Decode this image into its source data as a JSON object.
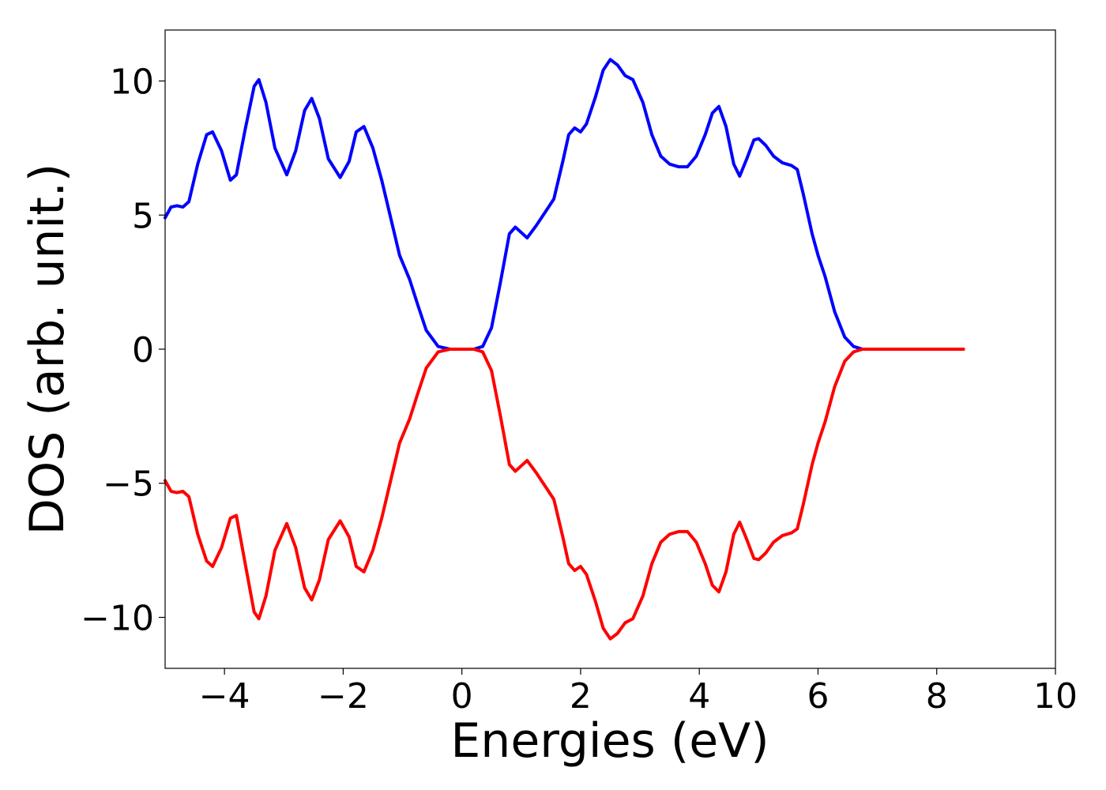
{
  "chart_data": {
    "type": "line",
    "title": "",
    "xlabel": "Energies (eV)",
    "ylabel": "DOS (arb. unit.)",
    "xlim": [
      -5,
      10
    ],
    "ylim": [
      -11.9,
      11.9
    ],
    "xticks": [
      -4,
      -2,
      0,
      2,
      4,
      6,
      8,
      10
    ],
    "xtick_labels": [
      "−4",
      "−2",
      "0",
      "2",
      "4",
      "6",
      "8",
      "10"
    ],
    "yticks": [
      10,
      5,
      0,
      -5,
      -10
    ],
    "ytick_labels": [
      "10",
      "5",
      "0",
      "−5",
      "−10"
    ],
    "grid": false,
    "legend": "none",
    "series": [
      {
        "color": "#0000ff",
        "points": [
          [
            -5.0,
            4.9
          ],
          [
            -4.9,
            5.3
          ],
          [
            -4.8,
            5.35
          ],
          [
            -4.7,
            5.3
          ],
          [
            -4.6,
            5.5
          ],
          [
            -4.45,
            6.9
          ],
          [
            -4.3,
            8.0
          ],
          [
            -4.2,
            8.1
          ],
          [
            -4.05,
            7.4
          ],
          [
            -3.9,
            6.3
          ],
          [
            -3.8,
            6.5
          ],
          [
            -3.65,
            8.2
          ],
          [
            -3.5,
            9.8
          ],
          [
            -3.42,
            10.05
          ],
          [
            -3.3,
            9.2
          ],
          [
            -3.15,
            7.5
          ],
          [
            -2.95,
            6.5
          ],
          [
            -2.8,
            7.4
          ],
          [
            -2.65,
            8.9
          ],
          [
            -2.53,
            9.35
          ],
          [
            -2.4,
            8.6
          ],
          [
            -2.25,
            7.1
          ],
          [
            -2.05,
            6.4
          ],
          [
            -1.9,
            7.0
          ],
          [
            -1.78,
            8.1
          ],
          [
            -1.65,
            8.3
          ],
          [
            -1.5,
            7.5
          ],
          [
            -1.35,
            6.3
          ],
          [
            -1.2,
            4.9
          ],
          [
            -1.05,
            3.5
          ],
          [
            -0.88,
            2.6
          ],
          [
            -0.75,
            1.7
          ],
          [
            -0.6,
            0.7
          ],
          [
            -0.4,
            0.1
          ],
          [
            -0.2,
            0.0
          ],
          [
            0.2,
            0.0
          ],
          [
            0.35,
            0.1
          ],
          [
            0.5,
            0.8
          ],
          [
            0.65,
            2.5
          ],
          [
            0.8,
            4.3
          ],
          [
            0.9,
            4.55
          ],
          [
            1.0,
            4.35
          ],
          [
            1.1,
            4.15
          ],
          [
            1.25,
            4.6
          ],
          [
            1.4,
            5.1
          ],
          [
            1.55,
            5.6
          ],
          [
            1.7,
            7.0
          ],
          [
            1.8,
            8.0
          ],
          [
            1.9,
            8.25
          ],
          [
            2.0,
            8.1
          ],
          [
            2.1,
            8.4
          ],
          [
            2.25,
            9.4
          ],
          [
            2.38,
            10.4
          ],
          [
            2.5,
            10.8
          ],
          [
            2.62,
            10.6
          ],
          [
            2.75,
            10.2
          ],
          [
            2.88,
            10.05
          ],
          [
            3.05,
            9.2
          ],
          [
            3.2,
            8.0
          ],
          [
            3.35,
            7.2
          ],
          [
            3.5,
            6.9
          ],
          [
            3.65,
            6.8
          ],
          [
            3.8,
            6.8
          ],
          [
            3.95,
            7.2
          ],
          [
            4.1,
            8.0
          ],
          [
            4.22,
            8.8
          ],
          [
            4.33,
            9.05
          ],
          [
            4.45,
            8.3
          ],
          [
            4.58,
            6.9
          ],
          [
            4.68,
            6.45
          ],
          [
            4.8,
            7.1
          ],
          [
            4.92,
            7.8
          ],
          [
            5.0,
            7.85
          ],
          [
            5.12,
            7.6
          ],
          [
            5.25,
            7.2
          ],
          [
            5.4,
            6.95
          ],
          [
            5.55,
            6.85
          ],
          [
            5.65,
            6.7
          ],
          [
            5.75,
            5.8
          ],
          [
            5.9,
            4.3
          ],
          [
            6.0,
            3.5
          ],
          [
            6.12,
            2.7
          ],
          [
            6.28,
            1.4
          ],
          [
            6.45,
            0.45
          ],
          [
            6.6,
            0.1
          ],
          [
            6.75,
            0.0
          ],
          [
            8.45,
            0.0
          ]
        ]
      },
      {
        "color": "#ff0000",
        "points": [
          [
            -5.0,
            -4.9
          ],
          [
            -4.9,
            -5.3
          ],
          [
            -4.8,
            -5.35
          ],
          [
            -4.7,
            -5.3
          ],
          [
            -4.6,
            -5.5
          ],
          [
            -4.45,
            -6.9
          ],
          [
            -4.3,
            -7.9
          ],
          [
            -4.2,
            -8.1
          ],
          [
            -4.05,
            -7.4
          ],
          [
            -3.9,
            -6.3
          ],
          [
            -3.8,
            -6.2
          ],
          [
            -3.65,
            -8.0
          ],
          [
            -3.5,
            -9.8
          ],
          [
            -3.42,
            -10.05
          ],
          [
            -3.3,
            -9.2
          ],
          [
            -3.15,
            -7.5
          ],
          [
            -2.95,
            -6.5
          ],
          [
            -2.8,
            -7.4
          ],
          [
            -2.65,
            -8.9
          ],
          [
            -2.53,
            -9.35
          ],
          [
            -2.4,
            -8.6
          ],
          [
            -2.25,
            -7.1
          ],
          [
            -2.05,
            -6.4
          ],
          [
            -1.9,
            -7.0
          ],
          [
            -1.78,
            -8.1
          ],
          [
            -1.65,
            -8.3
          ],
          [
            -1.5,
            -7.5
          ],
          [
            -1.35,
            -6.3
          ],
          [
            -1.2,
            -4.9
          ],
          [
            -1.05,
            -3.5
          ],
          [
            -0.88,
            -2.6
          ],
          [
            -0.75,
            -1.7
          ],
          [
            -0.6,
            -0.7
          ],
          [
            -0.4,
            -0.1
          ],
          [
            -0.2,
            0.0
          ],
          [
            0.2,
            0.0
          ],
          [
            0.35,
            -0.1
          ],
          [
            0.5,
            -0.8
          ],
          [
            0.65,
            -2.5
          ],
          [
            0.8,
            -4.3
          ],
          [
            0.9,
            -4.55
          ],
          [
            1.0,
            -4.35
          ],
          [
            1.1,
            -4.15
          ],
          [
            1.25,
            -4.6
          ],
          [
            1.4,
            -5.1
          ],
          [
            1.55,
            -5.6
          ],
          [
            1.7,
            -7.0
          ],
          [
            1.8,
            -8.0
          ],
          [
            1.9,
            -8.25
          ],
          [
            2.0,
            -8.1
          ],
          [
            2.1,
            -8.4
          ],
          [
            2.25,
            -9.4
          ],
          [
            2.38,
            -10.4
          ],
          [
            2.5,
            -10.8
          ],
          [
            2.62,
            -10.6
          ],
          [
            2.75,
            -10.2
          ],
          [
            2.88,
            -10.05
          ],
          [
            3.05,
            -9.2
          ],
          [
            3.2,
            -8.0
          ],
          [
            3.35,
            -7.2
          ],
          [
            3.5,
            -6.9
          ],
          [
            3.65,
            -6.8
          ],
          [
            3.8,
            -6.8
          ],
          [
            3.95,
            -7.2
          ],
          [
            4.1,
            -8.0
          ],
          [
            4.22,
            -8.8
          ],
          [
            4.33,
            -9.05
          ],
          [
            4.45,
            -8.3
          ],
          [
            4.58,
            -6.9
          ],
          [
            4.68,
            -6.45
          ],
          [
            4.8,
            -7.1
          ],
          [
            4.92,
            -7.8
          ],
          [
            5.0,
            -7.85
          ],
          [
            5.12,
            -7.6
          ],
          [
            5.25,
            -7.2
          ],
          [
            5.4,
            -6.95
          ],
          [
            5.55,
            -6.85
          ],
          [
            5.65,
            -6.7
          ],
          [
            5.75,
            -5.8
          ],
          [
            5.9,
            -4.3
          ],
          [
            6.0,
            -3.5
          ],
          [
            6.12,
            -2.7
          ],
          [
            6.28,
            -1.4
          ],
          [
            6.45,
            -0.45
          ],
          [
            6.6,
            -0.1
          ],
          [
            6.75,
            0.0
          ],
          [
            8.45,
            0.0
          ]
        ]
      }
    ]
  }
}
